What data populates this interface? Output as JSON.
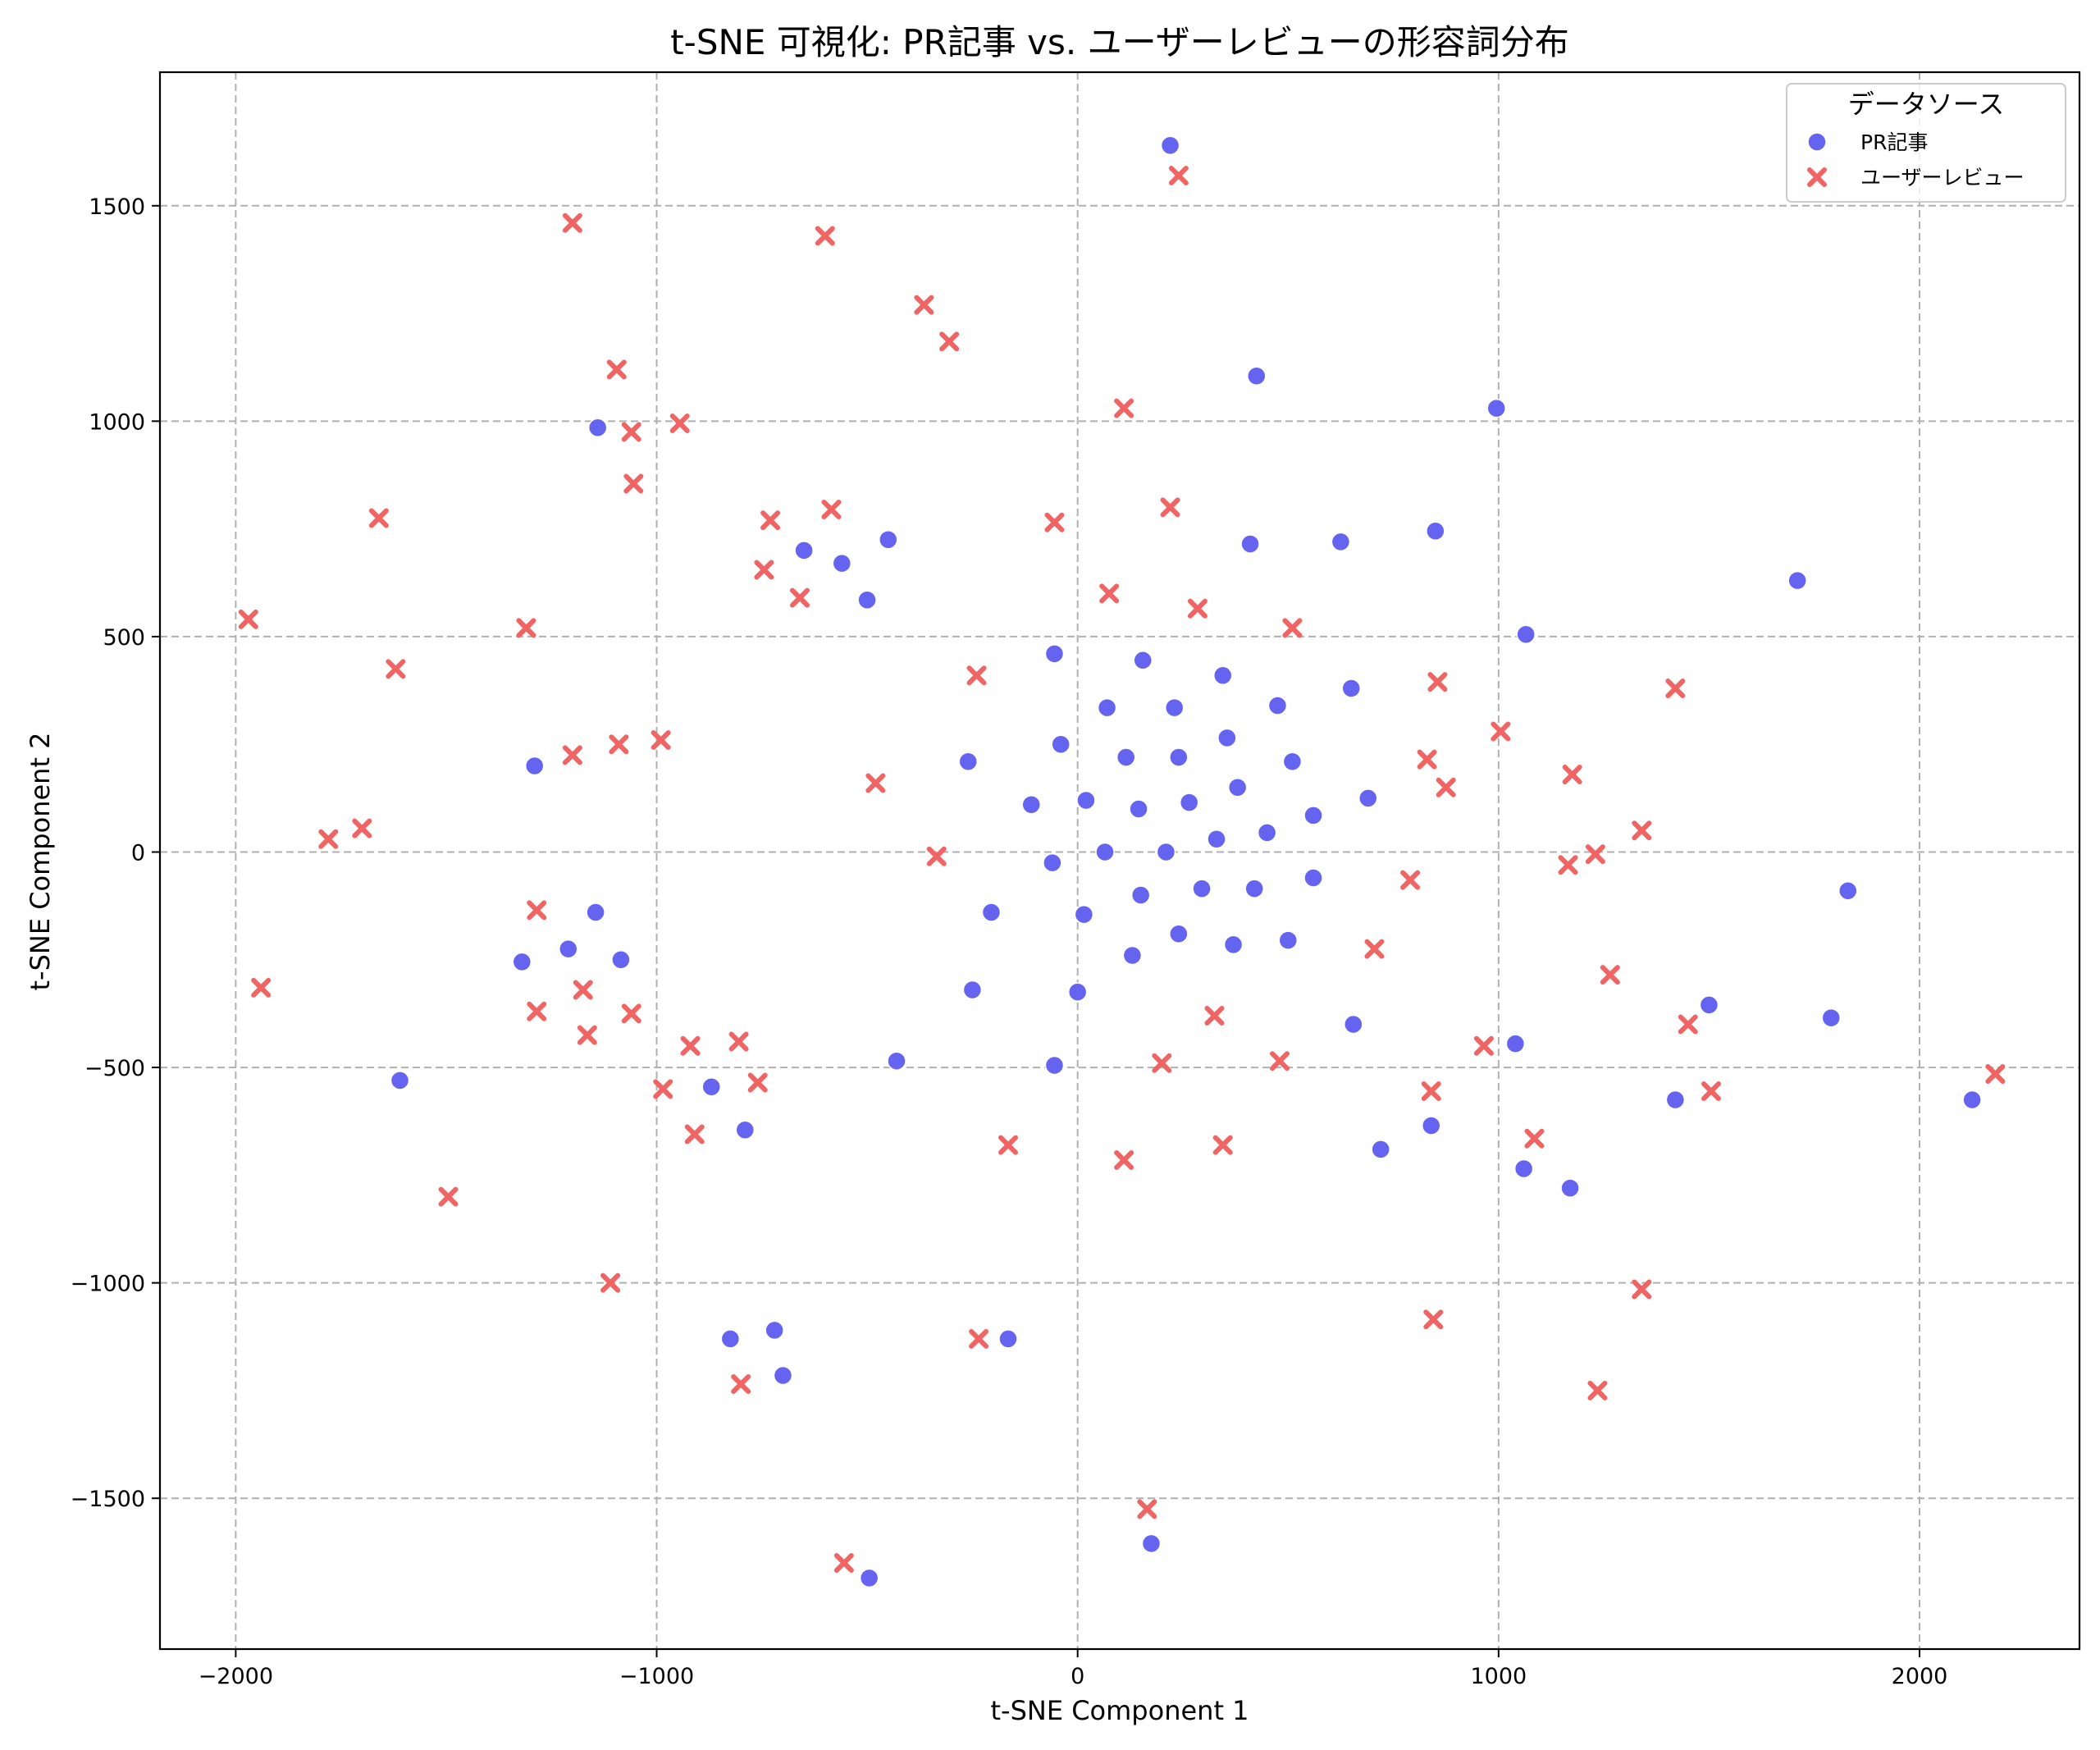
{
  "chart_data": {
    "type": "scatter",
    "title": "t-SNE 可視化: PR記事 vs. ユーザーレビューの形容詞分布",
    "xlabel": "t-SNE Component 1",
    "ylabel": "t-SNE Component 2",
    "xlim": [
      -2180,
      2380
    ],
    "ylim": [
      -1850,
      1810
    ],
    "xticks": [
      -2000,
      -1000,
      0,
      1000,
      2000
    ],
    "xtick_labels": [
      "−2000",
      "−1000",
      "0",
      "1000",
      "2000"
    ],
    "yticks": [
      -1500,
      -1000,
      -500,
      0,
      500,
      1000,
      1500
    ],
    "ytick_labels": [
      "−1500",
      "−1000",
      "−500",
      "0",
      "500",
      "1000",
      "1500"
    ],
    "grid": true,
    "legend": {
      "title": "データソース",
      "placement": "top-right"
    },
    "series": [
      {
        "name": "PR記事",
        "marker": "circle",
        "color": "#6464f0",
        "points": [
          [
            220,
            1640
          ],
          [
            425,
            1105
          ],
          [
            995,
            1030
          ],
          [
            -1140,
            985
          ],
          [
            410,
            715
          ],
          [
            625,
            720
          ],
          [
            850,
            745
          ],
          [
            -650,
            700
          ],
          [
            -560,
            670
          ],
          [
            -450,
            725
          ],
          [
            -500,
            585
          ],
          [
            1065,
            505
          ],
          [
            1710,
            630
          ],
          [
            -55,
            460
          ],
          [
            155,
            445
          ],
          [
            345,
            410
          ],
          [
            650,
            380
          ],
          [
            70,
            335
          ],
          [
            230,
            335
          ],
          [
            475,
            340
          ],
          [
            -40,
            250
          ],
          [
            355,
            265
          ],
          [
            -260,
            210
          ],
          [
            115,
            220
          ],
          [
            240,
            220
          ],
          [
            510,
            210
          ],
          [
            20,
            120
          ],
          [
            265,
            115
          ],
          [
            380,
            150
          ],
          [
            690,
            125
          ],
          [
            -110,
            110
          ],
          [
            145,
            100
          ],
          [
            560,
            85
          ],
          [
            -60,
            -25
          ],
          [
            65,
            0
          ],
          [
            210,
            0
          ],
          [
            330,
            30
          ],
          [
            450,
            45
          ],
          [
            295,
            -85
          ],
          [
            420,
            -85
          ],
          [
            560,
            -60
          ],
          [
            150,
            -100
          ],
          [
            -205,
            -140
          ],
          [
            15,
            -145
          ],
          [
            240,
            -190
          ],
          [
            130,
            -240
          ],
          [
            370,
            -215
          ],
          [
            500,
            -205
          ],
          [
            -250,
            -320
          ],
          [
            0,
            -325
          ],
          [
            655,
            -400
          ],
          [
            1040,
            -445
          ],
          [
            1500,
            -355
          ],
          [
            1790,
            -385
          ],
          [
            1830,
            -90
          ],
          [
            -1290,
            200
          ],
          [
            -1145,
            -140
          ],
          [
            -1210,
            -225
          ],
          [
            -1320,
            -255
          ],
          [
            -1085,
            -250
          ],
          [
            -1610,
            -530
          ],
          [
            -870,
            -545
          ],
          [
            -790,
            -645
          ],
          [
            -430,
            -485
          ],
          [
            -55,
            -495
          ],
          [
            720,
            -690
          ],
          [
            840,
            -635
          ],
          [
            1060,
            -735
          ],
          [
            1170,
            -780
          ],
          [
            1420,
            -575
          ],
          [
            2125,
            -575
          ],
          [
            -825,
            -1130
          ],
          [
            -720,
            -1110
          ],
          [
            -700,
            -1215
          ],
          [
            -165,
            -1130
          ],
          [
            -495,
            -1685
          ],
          [
            175,
            -1605
          ]
        ]
      },
      {
        "name": "ユーザーレビュー",
        "marker": "x",
        "color": "#f06464",
        "points": [
          [
            240,
            1570
          ],
          [
            -1200,
            1460
          ],
          [
            -600,
            1430
          ],
          [
            -365,
            1270
          ],
          [
            -305,
            1185
          ],
          [
            -1095,
            1120
          ],
          [
            -1060,
            975
          ],
          [
            -945,
            995
          ],
          [
            -1055,
            855
          ],
          [
            110,
            1030
          ],
          [
            -1660,
            775
          ],
          [
            -730,
            770
          ],
          [
            -585,
            795
          ],
          [
            -55,
            765
          ],
          [
            220,
            800
          ],
          [
            -745,
            655
          ],
          [
            -660,
            590
          ],
          [
            75,
            600
          ],
          [
            285,
            565
          ],
          [
            510,
            520
          ],
          [
            -1970,
            540
          ],
          [
            -1310,
            520
          ],
          [
            -1620,
            425
          ],
          [
            -240,
            410
          ],
          [
            855,
            395
          ],
          [
            1420,
            380
          ],
          [
            1005,
            280
          ],
          [
            -990,
            260
          ],
          [
            -1090,
            250
          ],
          [
            -1200,
            225
          ],
          [
            830,
            215
          ],
          [
            875,
            150
          ],
          [
            1175,
            180
          ],
          [
            -480,
            160
          ],
          [
            -1780,
            30
          ],
          [
            -1700,
            55
          ],
          [
            -335,
            -10
          ],
          [
            1230,
            -5
          ],
          [
            1165,
            -30
          ],
          [
            1340,
            50
          ],
          [
            790,
            -65
          ],
          [
            -1285,
            -135
          ],
          [
            -1175,
            -320
          ],
          [
            -1285,
            -370
          ],
          [
            -1060,
            -375
          ],
          [
            705,
            -225
          ],
          [
            1265,
            -285
          ],
          [
            -1165,
            -425
          ],
          [
            -920,
            -450
          ],
          [
            -805,
            -440
          ],
          [
            325,
            -380
          ],
          [
            965,
            -450
          ],
          [
            1450,
            -400
          ],
          [
            -985,
            -550
          ],
          [
            -760,
            -535
          ],
          [
            200,
            -490
          ],
          [
            480,
            -485
          ],
          [
            840,
            -555
          ],
          [
            1505,
            -555
          ],
          [
            2180,
            -515
          ],
          [
            -910,
            -655
          ],
          [
            -165,
            -680
          ],
          [
            110,
            -715
          ],
          [
            345,
            -680
          ],
          [
            1085,
            -665
          ],
          [
            -1940,
            -315
          ],
          [
            -1495,
            -800
          ],
          [
            -1110,
            -1000
          ],
          [
            1340,
            -1015
          ],
          [
            -235,
            -1130
          ],
          [
            845,
            -1085
          ],
          [
            -800,
            -1235
          ],
          [
            1235,
            -1250
          ],
          [
            165,
            -1525
          ],
          [
            -555,
            -1650
          ]
        ]
      }
    ]
  }
}
